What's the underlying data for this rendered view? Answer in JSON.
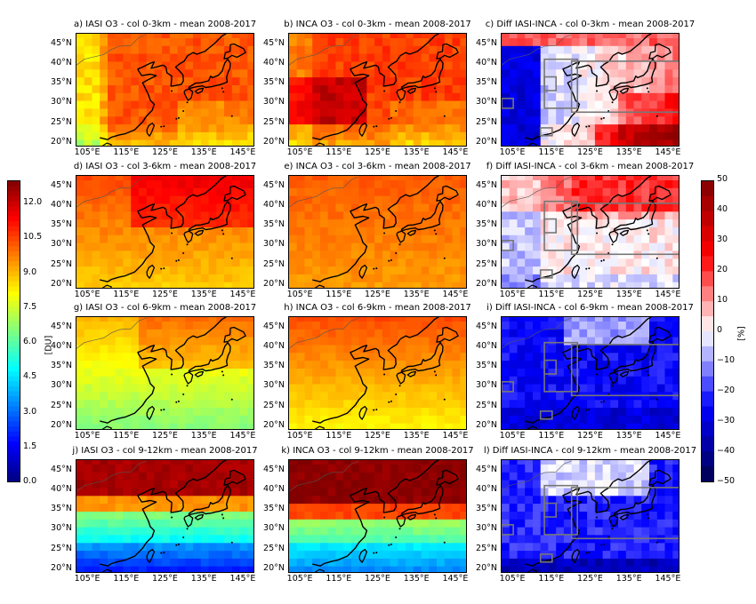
{
  "panels": [
    {
      "title": "a) IASI O3 - col 0-3km - mean 2008-2017",
      "type": "abs",
      "layer": 0,
      "src": "iasi"
    },
    {
      "title": "b) INCA O3 - col 0-3km - mean 2008-2017",
      "type": "abs",
      "layer": 0,
      "src": "inca"
    },
    {
      "title": "c) Diff IASI-INCA - col 0-3km - mean 2008-2017",
      "type": "diff",
      "layer": 0
    },
    {
      "title": "d) IASI O3 - col 3-6km - mean 2008-2017",
      "type": "abs",
      "layer": 1,
      "src": "iasi"
    },
    {
      "title": "e) INCA O3 - col 3-6km - mean 2008-2017",
      "type": "abs",
      "layer": 1,
      "src": "inca"
    },
    {
      "title": "f) Diff IASI-INCA - col 3-6km - mean 2008-2017",
      "type": "diff",
      "layer": 1
    },
    {
      "title": "g) IASI O3 - col 6-9km - mean 2008-2017",
      "type": "abs",
      "layer": 2,
      "src": "iasi"
    },
    {
      "title": "h) INCA O3 - col 6-9km - mean 2008-2017",
      "type": "abs",
      "layer": 2,
      "src": "inca"
    },
    {
      "title": "i) Diff IASI-INCA - col 6-9km - mean 2008-2017",
      "type": "diff",
      "layer": 2
    },
    {
      "title": "j) IASI O3 - col 9-12km - mean 2008-2017",
      "type": "abs",
      "layer": 3,
      "src": "iasi"
    },
    {
      "title": "k) INCA O3 - col 9-12km - mean 2008-2017",
      "type": "abs",
      "layer": 3,
      "src": "inca"
    },
    {
      "title": "l) Diff IASI-INCA - col 9-12km - mean 2008-2017",
      "type": "diff",
      "layer": 3
    }
  ],
  "lat_labels": [
    "45°N",
    "40°N",
    "35°N",
    "30°N",
    "25°N",
    "20°N"
  ],
  "lon_labels": [
    "105°E",
    "115°E",
    "125°E",
    "135°E",
    "145°E"
  ],
  "lat_range": [
    19,
    48
  ],
  "lon_range": [
    102,
    148
  ],
  "colorbar_left": {
    "unit": "[DU]",
    "ticks": [
      "12.0",
      "10.5",
      "9.0",
      "7.5",
      "6.0",
      "4.5",
      "3.0",
      "1.5",
      "0.0"
    ],
    "range": [
      0,
      13
    ]
  },
  "colorbar_right": {
    "unit": "[%]",
    "ticks": [
      "50",
      "40",
      "30",
      "20",
      "10",
      "0",
      "−10",
      "−20",
      "−30",
      "−40",
      "−50"
    ],
    "range": [
      -50,
      50
    ]
  },
  "colors": {
    "box_outline": "#777777",
    "coast": "#000000"
  }
}
